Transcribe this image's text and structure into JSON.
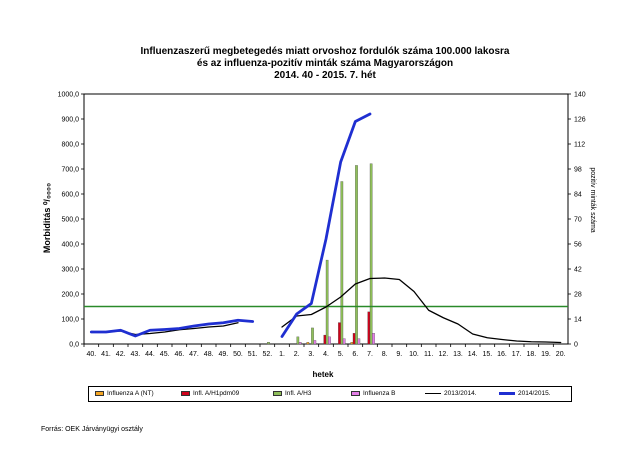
{
  "title": {
    "line1": "Influenzaszerű megbetegedés miatt orvoshoz fordulók száma 100.000 lakosra",
    "line2": "és az influenza-pozitív minták száma Magyarországon",
    "line3": "2014. 40 - 2015. 7. hét"
  },
  "source": "Forrás: OEK Járványügyi osztály",
  "chart_data": {
    "type": "bar",
    "xlabel": "hetek",
    "ylabel": "Morbiditás ⁰/₀₀₀₀",
    "y2label": "pozitív minták száma",
    "ylim": [
      0,
      1000
    ],
    "y2lim": [
      0,
      140
    ],
    "yticks": [
      "0,0",
      "100,0",
      "200,0",
      "300,0",
      "400,0",
      "500,0",
      "600,0",
      "700,0",
      "800,0",
      "900,0",
      "1000,0"
    ],
    "y2ticks": [
      "0",
      "14",
      "28",
      "42",
      "56",
      "70",
      "84",
      "98",
      "112",
      "126",
      "140"
    ],
    "categories": [
      "40.",
      "41.",
      "42.",
      "43.",
      "44.",
      "45.",
      "46.",
      "47.",
      "48.",
      "49.",
      "50.",
      "51.",
      "52.",
      "1.",
      "2.",
      "3.",
      "4.",
      "5.",
      "6.",
      "7.",
      "8.",
      "9.",
      "10.",
      "11.",
      "12.",
      "13.",
      "14.",
      "15.",
      "16.",
      "17.",
      "18.",
      "19.",
      "20."
    ],
    "threshold": 150,
    "bar_series": [
      {
        "name": "Influenza A (NT)",
        "color": "#f5a623",
        "values": [
          0,
          0,
          0,
          0,
          0,
          0,
          0,
          0,
          0,
          0,
          0,
          0,
          0,
          0,
          0,
          1,
          0,
          0,
          1,
          0,
          0,
          0,
          0,
          0,
          0,
          0,
          0,
          0,
          0,
          0,
          0,
          0,
          0
        ]
      },
      {
        "name": "Infl. A/H1pdm09",
        "color": "#d0021b",
        "values": [
          0,
          0,
          0,
          0,
          0,
          0,
          0,
          0,
          0,
          0,
          0,
          0,
          0,
          0,
          0,
          0,
          5,
          12,
          6,
          18,
          0,
          0,
          0,
          0,
          0,
          0,
          0,
          0,
          0,
          0,
          0,
          0,
          0
        ]
      },
      {
        "name": "Infl. A/H3",
        "color": "#8fbf5a",
        "values": [
          0,
          0,
          0,
          0,
          0,
          0,
          0,
          0,
          0,
          0,
          0,
          0,
          1,
          0,
          4,
          9,
          47,
          91,
          100,
          101,
          0,
          0,
          0,
          0,
          0,
          0,
          0,
          0,
          0,
          0,
          0,
          0,
          0
        ]
      },
      {
        "name": "Influenza B",
        "color": "#e47fe8",
        "values": [
          0,
          0,
          0,
          0,
          0,
          0,
          0,
          0,
          0,
          0,
          0,
          0,
          0,
          0,
          1,
          2,
          4,
          3,
          3,
          6,
          0,
          0,
          0,
          0,
          0,
          0,
          0,
          0,
          0,
          0,
          0,
          0,
          0
        ]
      }
    ],
    "line_series": [
      {
        "name": "2013/2014.",
        "color": "#000000",
        "values": [
          50,
          48,
          52,
          38,
          42,
          48,
          57,
          62,
          68,
          72,
          85,
          null,
          null,
          68,
          112,
          118,
          148,
          188,
          240,
          262,
          264,
          258,
          210,
          135,
          105,
          80,
          40,
          25,
          18,
          12,
          9,
          8,
          6
        ]
      },
      {
        "name": "2014/2015.",
        "color": "#1f2fd1",
        "values": [
          48,
          48,
          55,
          32,
          55,
          58,
          62,
          72,
          80,
          85,
          95,
          90,
          null,
          30,
          120,
          162,
          420,
          728,
          890,
          920,
          null,
          null,
          null,
          null,
          null,
          null,
          null,
          null,
          null,
          null,
          null,
          null,
          null
        ]
      }
    ]
  }
}
